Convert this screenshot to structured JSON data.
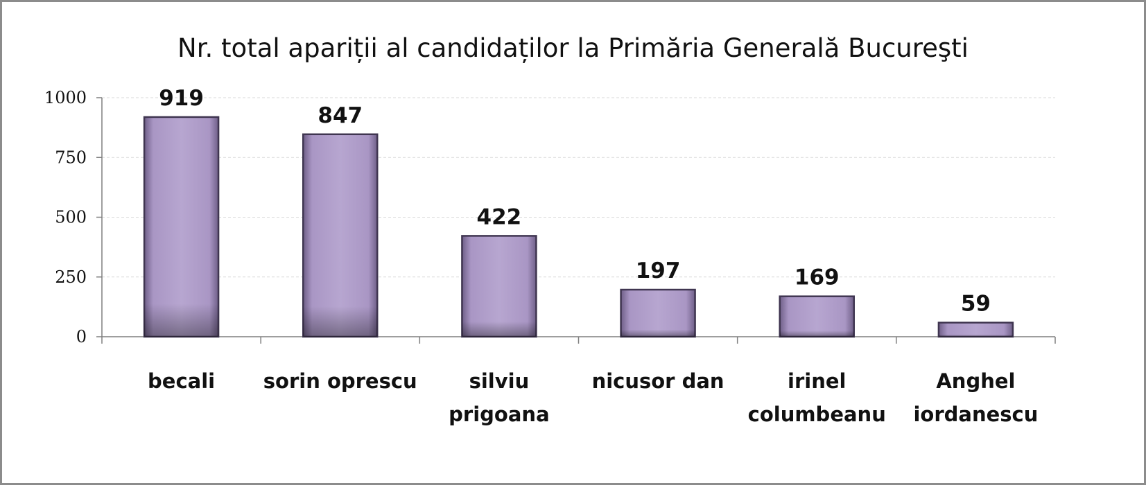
{
  "chart_data": {
    "type": "bar",
    "title": "Nr. total apariții al candidaților la Primăria Generală Bucureşti",
    "categories": [
      [
        "becali"
      ],
      [
        "sorin oprescu"
      ],
      [
        "silviu",
        "prigoana"
      ],
      [
        "nicusor dan"
      ],
      [
        "irinel",
        "columbeanu"
      ],
      [
        "Anghel",
        "iordanescu"
      ]
    ],
    "values": [
      919,
      847,
      422,
      197,
      169,
      59
    ],
    "y_ticks": [
      "0",
      "250",
      "500",
      "750",
      "1000"
    ],
    "ylim": [
      0,
      1000
    ],
    "grid": true,
    "legend": "none",
    "colors": {
      "bar_fill": "#b19fcb",
      "bar_edge": "#3f3550",
      "grid": "#d9d9d9",
      "axis": "#7f7f7f"
    }
  }
}
